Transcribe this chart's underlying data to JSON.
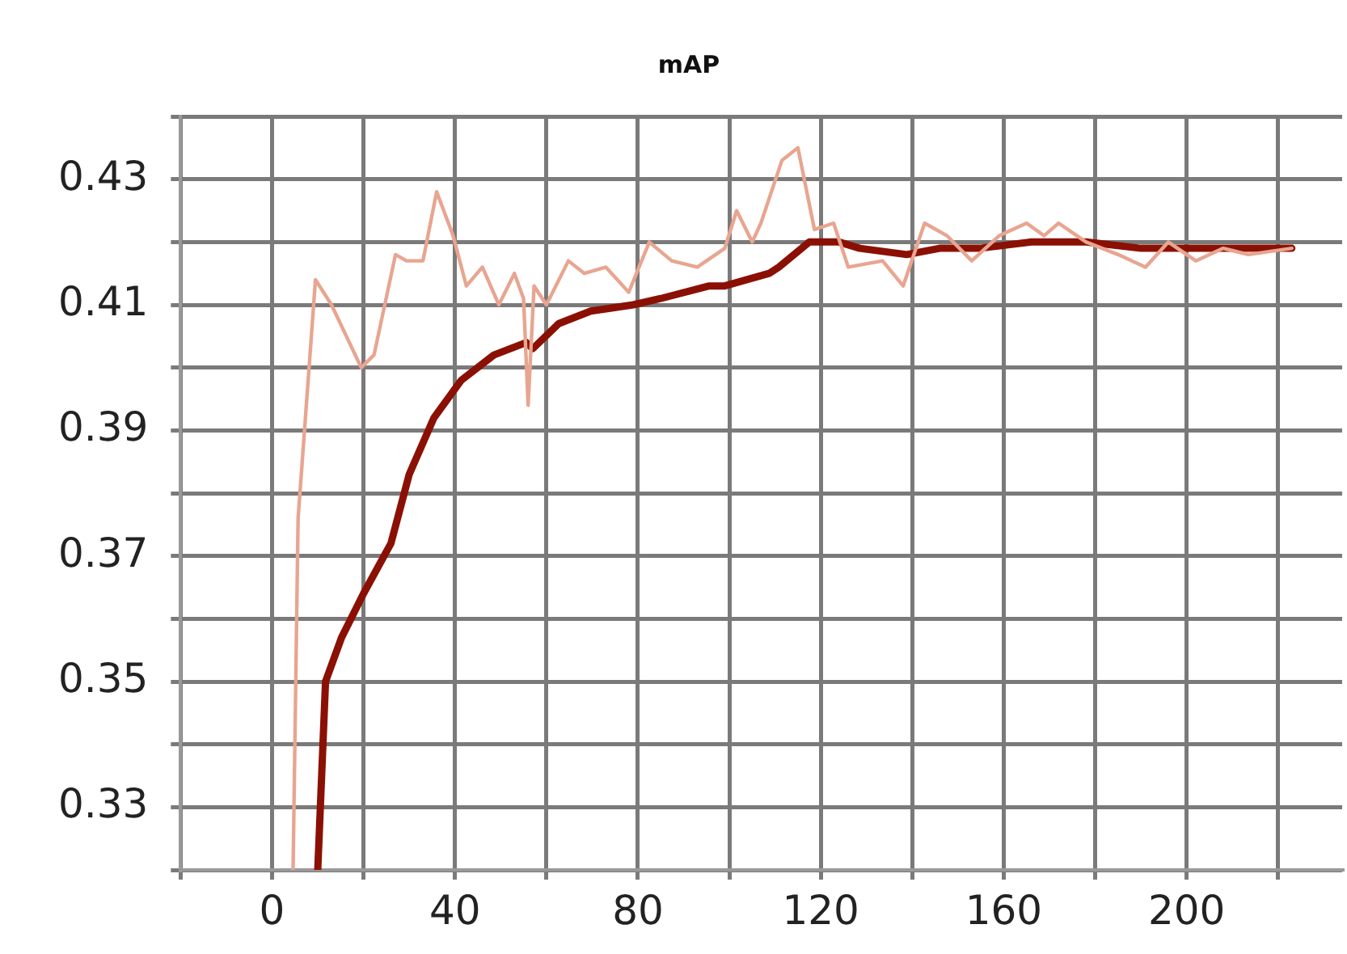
{
  "chart_data": {
    "type": "line",
    "title": "mAP",
    "xlim": [
      -20,
      234
    ],
    "ylim": [
      0.32,
      0.44
    ],
    "xticks": [
      {
        "value": -20,
        "label": null
      },
      0,
      {
        "value": 20,
        "label": null
      },
      40,
      {
        "value": 60,
        "label": null
      },
      80,
      {
        "value": 100,
        "label": null
      },
      120,
      {
        "value": 140,
        "label": null
      },
      160,
      {
        "value": 180,
        "label": null
      },
      200,
      {
        "value": 220,
        "label": null
      }
    ],
    "yticks": [
      {
        "value": 0.32,
        "label": null
      },
      {
        "value": 0.33,
        "label": "0.33"
      },
      {
        "value": 0.34,
        "label": null
      },
      {
        "value": 0.35,
        "label": "0.35"
      },
      {
        "value": 0.36,
        "label": null
      },
      {
        "value": 0.37,
        "label": "0.37"
      },
      {
        "value": 0.38,
        "label": null
      },
      {
        "value": 0.39,
        "label": "0.39"
      },
      {
        "value": 0.4,
        "label": null
      },
      {
        "value": 0.41,
        "label": "0.41"
      },
      {
        "value": 0.42,
        "label": null
      },
      {
        "value": 0.43,
        "label": "0.43"
      },
      {
        "value": 0.44,
        "label": null
      }
    ],
    "grid": true,
    "legend": false,
    "marker": "none",
    "line_style": "solid",
    "series": [
      {
        "color": "#e8a590",
        "x": [
          4.6,
          5.7,
          9.5,
          13,
          19.5,
          22.3,
          27,
          29.4,
          33,
          36,
          39.6,
          42.5,
          46,
          49.6,
          53,
          55,
          56,
          57.3,
          60,
          64.8,
          68.3,
          73,
          78,
          82.5,
          87.4,
          93,
          99,
          101.6,
          105,
          106.9,
          111.5,
          115,
          118.6,
          122.8,
          126,
          133.5,
          138,
          142.7,
          147.6,
          153,
          159,
          165,
          168.8,
          172,
          178,
          185,
          191,
          196,
          202,
          208,
          213.5,
          223
        ],
        "values": [
          0.32,
          0.376,
          0.414,
          0.41,
          0.4,
          0.402,
          0.418,
          0.417,
          0.417,
          0.428,
          0.421,
          0.413,
          0.416,
          0.41,
          0.415,
          0.411,
          0.394,
          0.413,
          0.41,
          0.417,
          0.415,
          0.416,
          0.412,
          0.42,
          0.417,
          0.416,
          0.419,
          0.425,
          0.42,
          0.423,
          0.433,
          0.435,
          0.422,
          0.423,
          0.416,
          0.417,
          0.413,
          0.423,
          0.421,
          0.417,
          0.421,
          0.423,
          0.421,
          0.423,
          0.42,
          0.418,
          0.416,
          0.42,
          0.417,
          0.419,
          0.418,
          0.419
        ]
      },
      {
        "color": "#8b1004",
        "x": [
          10,
          11.7,
          15.2,
          20,
          26,
          30,
          35.4,
          41.4,
          48.5,
          55.6,
          57,
          62.7,
          69.7,
          79,
          85,
          95.6,
          99,
          108.7,
          110.8,
          117.5,
          124,
          128.5,
          138.8,
          146,
          154.7,
          166,
          178,
          190,
          202,
          213.5,
          223
        ],
        "values": [
          0.32,
          0.35,
          0.357,
          0.364,
          0.372,
          0.383,
          0.392,
          0.398,
          0.402,
          0.404,
          0.403,
          0.407,
          0.409,
          0.41,
          0.411,
          0.413,
          0.413,
          0.415,
          0.416,
          0.42,
          0.42,
          0.419,
          0.418,
          0.419,
          0.419,
          0.42,
          0.42,
          0.419,
          0.419,
          0.419,
          0.419
        ]
      }
    ]
  }
}
